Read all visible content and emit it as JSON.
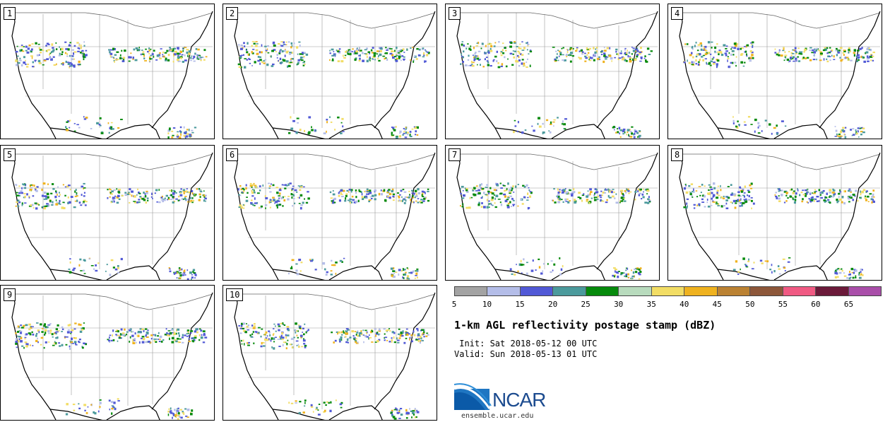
{
  "panels": [
    {
      "label": "1"
    },
    {
      "label": "2"
    },
    {
      "label": "3"
    },
    {
      "label": "4"
    },
    {
      "label": "5"
    },
    {
      "label": "6"
    },
    {
      "label": "7"
    },
    {
      "label": "8"
    },
    {
      "label": "9"
    },
    {
      "label": "10"
    }
  ],
  "legend": {
    "ticks": [
      "5",
      "10",
      "15",
      "20",
      "25",
      "30",
      "35",
      "40",
      "45",
      "50",
      "55",
      "60",
      "65"
    ],
    "colors": [
      "#a3a3a3",
      "#b4bde8",
      "#5159d6",
      "#4b9a9c",
      "#068a0c",
      "#b8dbbd",
      "#f2dd65",
      "#efb21f",
      "#bb8233",
      "#8d573a",
      "#f05a83",
      "#6b1a3a",
      "#a94ea9"
    ]
  },
  "title": "1-km AGL reflectivity postage stamp (dBZ)",
  "init": " Init: Sat 2018-05-12 00 UTC",
  "valid": "Valid: Sun 2018-05-13 01 UTC",
  "logo_text": "NCAR",
  "url": "ensemble.ucar.edu"
}
